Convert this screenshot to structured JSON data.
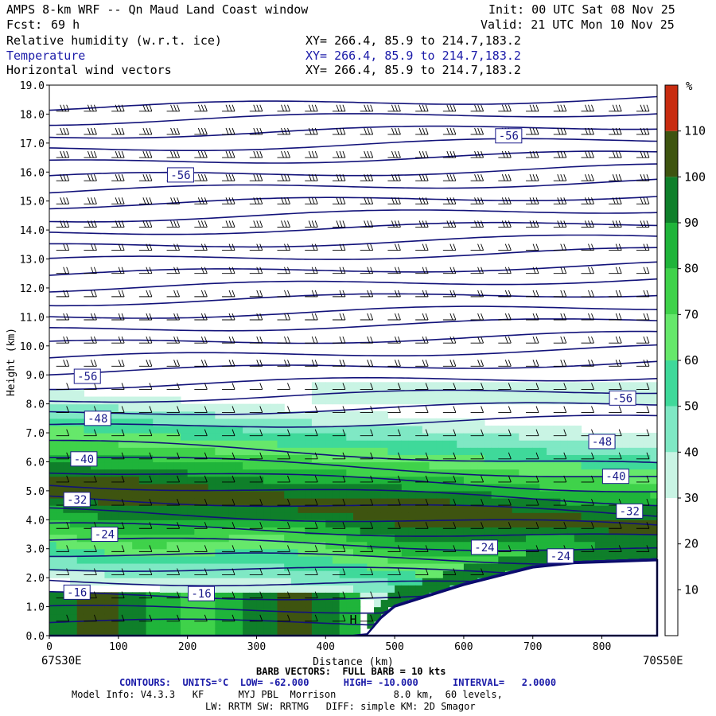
{
  "header": {
    "title": "AMPS 8-km WRF -- Qn Maud Land Coast window",
    "init": "Init: 00 UTC Sat 08 Nov 25",
    "fcst_label": "Fcst:",
    "fcst_value": "69 h",
    "valid": "Valid: 21 UTC Mon 10 Nov 25",
    "fields": [
      {
        "name": "Relative humidity (w.r.t. ice)",
        "xy": "XY= 266.4, 85.9 to 214.7,183.2"
      },
      {
        "name": "Temperature",
        "xy": "XY= 266.4, 85.9 to 214.7,183.2"
      },
      {
        "name": "Horizontal wind vectors",
        "xy": "XY= 266.4, 85.9 to 214.7,183.2"
      }
    ]
  },
  "chart_data": {
    "type": "heatmap",
    "xlabel": "Distance (km)",
    "ylabel": "Height (km)",
    "xlim": [
      0,
      880
    ],
    "ylim": [
      0,
      19
    ],
    "x_ticks": [
      0,
      100,
      200,
      300,
      400,
      500,
      600,
      700,
      800
    ],
    "y_ticks": [
      0.0,
      1.0,
      2.0,
      3.0,
      4.0,
      5.0,
      6.0,
      7.0,
      8.0,
      9.0,
      10.0,
      11.0,
      12.0,
      13.0,
      14.0,
      15.0,
      16.0,
      17.0,
      18.0,
      19.0
    ],
    "x_left_label": "67S30E",
    "x_right_label": "70S50E",
    "colorbar": {
      "unit": "%",
      "levels": [
        10,
        20,
        30,
        40,
        50,
        60,
        70,
        80,
        90,
        100,
        110
      ],
      "colors": [
        "#ffffff",
        "#ffffff",
        "#ffffff",
        "#c9f4e4",
        "#7fe8c4",
        "#3fd99a",
        "#66e86b",
        "#3fd24a",
        "#1fb43a",
        "#0f7f2a",
        "#3e5410",
        "#c82c10"
      ]
    },
    "terrain": [
      [
        0,
        0
      ],
      [
        440,
        0
      ],
      [
        460,
        0.05
      ],
      [
        480,
        0.6
      ],
      [
        500,
        1.0
      ],
      [
        560,
        1.45
      ],
      [
        600,
        1.75
      ],
      [
        650,
        2.05
      ],
      [
        700,
        2.35
      ],
      [
        760,
        2.5
      ],
      [
        880,
        2.6
      ]
    ],
    "contour_labels": [
      {
        "text": "-56",
        "x": 665,
        "y": 17.25
      },
      {
        "text": "-56",
        "x": 190,
        "y": 15.9
      },
      {
        "text": "-56",
        "x": 55,
        "y": 8.95
      },
      {
        "text": "-56",
        "x": 830,
        "y": 8.2
      },
      {
        "text": "-48",
        "x": 70,
        "y": 7.5
      },
      {
        "text": "-48",
        "x": 800,
        "y": 6.7
      },
      {
        "text": "-40",
        "x": 50,
        "y": 6.1
      },
      {
        "text": "-40",
        "x": 820,
        "y": 5.5
      },
      {
        "text": "-32",
        "x": 40,
        "y": 4.7
      },
      {
        "text": "-32",
        "x": 840,
        "y": 4.3
      },
      {
        "text": "-24",
        "x": 80,
        "y": 3.5
      },
      {
        "text": "-24",
        "x": 630,
        "y": 3.05
      },
      {
        "text": "-24",
        "x": 740,
        "y": 2.75
      },
      {
        "text": "-16",
        "x": 40,
        "y": 1.5
      },
      {
        "text": "-16",
        "x": 220,
        "y": 1.45
      }
    ],
    "high_marker": {
      "text": "H",
      "x": 440,
      "y": 0.55
    }
  },
  "footer": {
    "barb_note": "BARB VECTORS:  FULL BARB = 10 kts",
    "contours_note": "CONTOURS:  UNITS=°C  LOW= -62.000      HIGH= -10.000      INTERVAL=   2.0000",
    "model_info": "Model Info: V4.3.3   KF      MYJ PBL  Morrison          8.0 km,  60 levels,",
    "physics_info": "LW: RRTM SW: RRTMG   DIFF: simple KM: 2D Smagor"
  }
}
